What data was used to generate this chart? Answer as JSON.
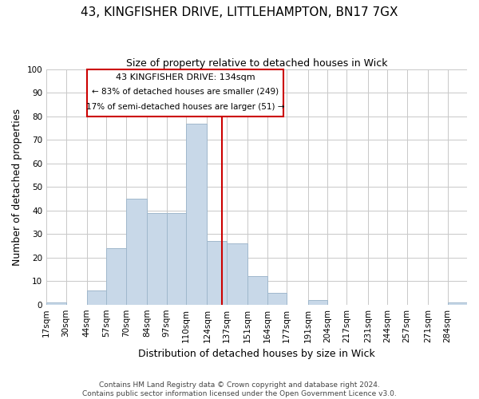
{
  "title": "43, KINGFISHER DRIVE, LITTLEHAMPTON, BN17 7GX",
  "subtitle": "Size of property relative to detached houses in Wick",
  "xlabel": "Distribution of detached houses by size in Wick",
  "ylabel": "Number of detached properties",
  "bin_labels": [
    "17sqm",
    "30sqm",
    "44sqm",
    "57sqm",
    "70sqm",
    "84sqm",
    "97sqm",
    "110sqm",
    "124sqm",
    "137sqm",
    "151sqm",
    "164sqm",
    "177sqm",
    "191sqm",
    "204sqm",
    "217sqm",
    "231sqm",
    "244sqm",
    "257sqm",
    "271sqm",
    "284sqm"
  ],
  "bin_edges": [
    17,
    30,
    44,
    57,
    70,
    84,
    97,
    110,
    124,
    137,
    151,
    164,
    177,
    191,
    204,
    217,
    231,
    244,
    257,
    271,
    284,
    297
  ],
  "bar_heights": [
    1,
    0,
    6,
    24,
    45,
    39,
    39,
    77,
    27,
    26,
    12,
    5,
    0,
    2,
    0,
    0,
    0,
    0,
    0,
    0,
    1
  ],
  "bar_color": "#c8d8e8",
  "bar_edgecolor": "#a0b8cc",
  "grid_color": "#c8c8c8",
  "annotation_box_edgecolor": "#cc0000",
  "vline_color": "#cc0000",
  "annotation_title": "43 KINGFISHER DRIVE: 134sqm",
  "annotation_line1": "← 83% of detached houses are smaller (249)",
  "annotation_line2": "17% of semi-detached houses are larger (51) →",
  "vline_x": 134,
  "footnote1": "Contains HM Land Registry data © Crown copyright and database right 2024.",
  "footnote2": "Contains public sector information licensed under the Open Government Licence v3.0.",
  "ylim": [
    0,
    100
  ],
  "yticks": [
    0,
    10,
    20,
    30,
    40,
    50,
    60,
    70,
    80,
    90,
    100
  ],
  "background_color": "#ffffff",
  "title_fontsize": 11,
  "subtitle_fontsize": 9,
  "axis_label_fontsize": 9,
  "tick_fontsize": 7.5,
  "footnote_fontsize": 6.5
}
